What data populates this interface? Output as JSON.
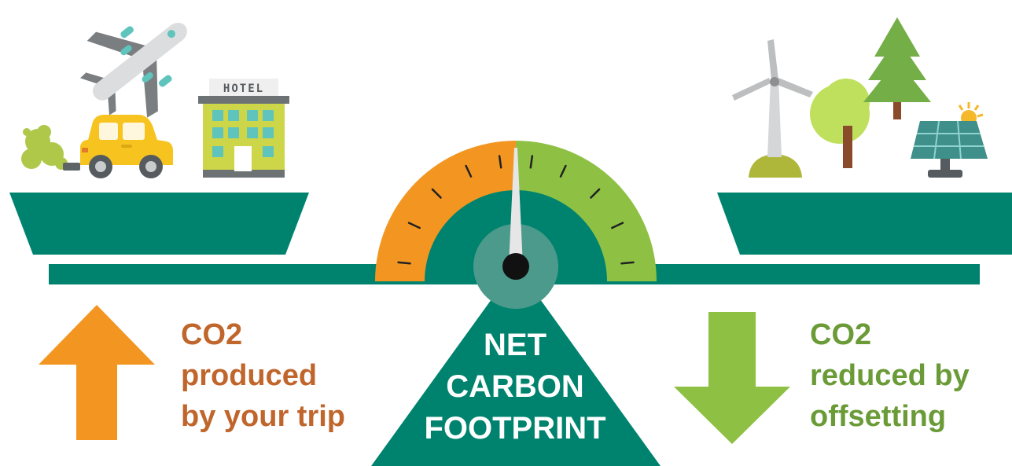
{
  "colors": {
    "teal": "#00836E",
    "orange": "#F39621",
    "green": "#8DC043",
    "orange_text": "#C0662C",
    "green_text": "#6A9B37",
    "hub": "#4C9A8B"
  },
  "left": {
    "title": "CO2",
    "line1": "produced",
    "line2": "by your trip",
    "hotel_sign": "HOTEL",
    "icons": [
      "airplane-icon",
      "car-icon",
      "exhaust-cloud-icon",
      "hotel-icon"
    ]
  },
  "right": {
    "title": "CO2",
    "line1": "reduced by",
    "line2": "offsetting",
    "icons": [
      "wind-turbine-icon",
      "deciduous-tree-icon",
      "pine-tree-icon",
      "solar-panel-icon",
      "sun-icon"
    ]
  },
  "center": {
    "line1": "NET",
    "line2": "CARBON",
    "line3": "FOOTPRINT"
  },
  "gauge": {
    "needle_position": 0.5,
    "left_segment": "orange",
    "right_segment": "green"
  }
}
